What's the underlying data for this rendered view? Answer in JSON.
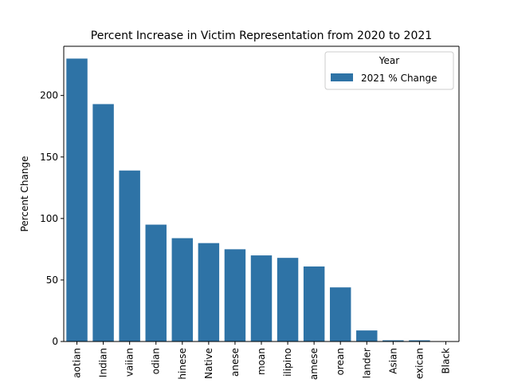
{
  "chart_data": {
    "type": "bar",
    "title": "Percent Increase in Victim Representation from 2020 to 2021",
    "xlabel": "",
    "ylabel": "Percent Change",
    "ylim": [
      0,
      240
    ],
    "yticks": [
      "0",
      "50",
      "100",
      "150",
      "200"
    ],
    "categories": [
      "aotian",
      "Indian",
      "vaiian",
      "odian",
      "hinese",
      "Native",
      "anese",
      "moan",
      "ilipino",
      "amese",
      "orean",
      "lander",
      "Asian",
      "exican",
      "Black"
    ],
    "series": [
      {
        "name": "2021 % Change",
        "values": [
          230,
          193,
          139,
          95,
          84,
          80,
          75,
          70,
          68,
          61,
          44,
          9,
          1,
          1,
          0
        ],
        "color": "#2e73a6"
      }
    ],
    "legend": {
      "title": "Year",
      "placement": "top-right"
    },
    "grid": false
  }
}
